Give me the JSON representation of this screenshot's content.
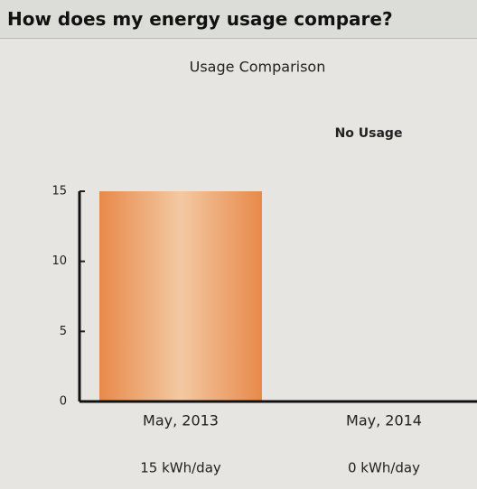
{
  "header": {
    "title": "How does my energy usage compare?"
  },
  "chart_data": {
    "type": "bar",
    "title": "Usage Comparison",
    "annotation": "No Usage",
    "categories": [
      "May, 2013",
      "May, 2014"
    ],
    "values": [
      15,
      0
    ],
    "value_labels": [
      "15 kWh/day",
      "0 kWh/day"
    ],
    "color": "#e8894a",
    "ylim": [
      0,
      15
    ],
    "yticks": [
      0,
      5,
      10,
      15
    ],
    "grid": false
  }
}
